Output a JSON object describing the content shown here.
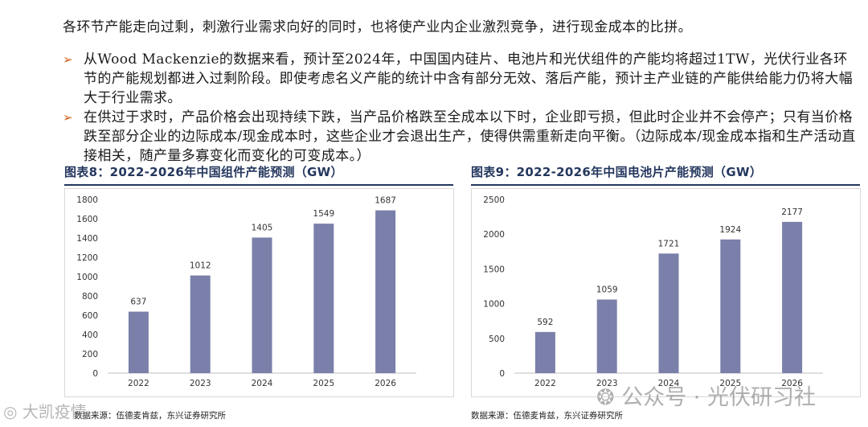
{
  "intro": "各环节产能走向过剩，刺激行业需求向好的同时，也将使产业内企业激烈竞争，进行现金成本的比拼。",
  "bullets": [
    "从Wood Mackenzie的数据来看，预计至2024年，中国国内硅片、电池片和光伏组件的产能均将超过1TW，光伏行业各环节的产能规划都进入过剩阶段。即使考虑名义产能的统计中含有部分无效、落后产能，预计主产业链的产能供给能力仍将大幅大于行业需求。",
    "在供过于求时，产品价格会出现持续下跌，当产品价格跌至全成本以下时，企业即亏损，但此时企业并不会停产；只有当价格跌至部分企业的边际成本/现金成本时，这些企业才会退出生产，使得供需重新走向平衡。（边际成本/现金成本指和生产活动直接相关，随产量多寡变化而变化的可变成本。）"
  ],
  "figures": [
    {
      "title": "图表8：2022-2026年中国组件产能预测（GW）",
      "source": "数据来源：伍德麦肯兹，东兴证券研究所"
    },
    {
      "title": "图表9：2022-2026年中国电池片产能预测（GW）",
      "source": "数据来源：伍德麦肯兹，东兴证券研究所"
    }
  ],
  "watermark": {
    "left": "大凯疫情",
    "right": "公众号 · 光伏研习社"
  },
  "colors": {
    "bar": "#7a80aa",
    "title": "#24375e",
    "arrow": "#d5621a"
  },
  "chart_data": [
    {
      "type": "bar",
      "title": "",
      "categories": [
        "2022",
        "2023",
        "2024",
        "2025",
        "2026"
      ],
      "values": [
        637,
        1012,
        1405,
        1549,
        1687
      ],
      "ylim": [
        0,
        1800
      ],
      "yticks": [
        0,
        200,
        400,
        600,
        800,
        1000,
        1200,
        1400,
        1600,
        1800
      ],
      "grid": false
    },
    {
      "type": "bar",
      "title": "",
      "categories": [
        "2022",
        "2023",
        "2024",
        "2025",
        "2026"
      ],
      "values": [
        592,
        1059,
        1721,
        1924,
        2177
      ],
      "ylim": [
        0,
        2500
      ],
      "yticks": [
        0,
        500,
        1000,
        1500,
        2000,
        2500
      ],
      "grid": false
    }
  ]
}
